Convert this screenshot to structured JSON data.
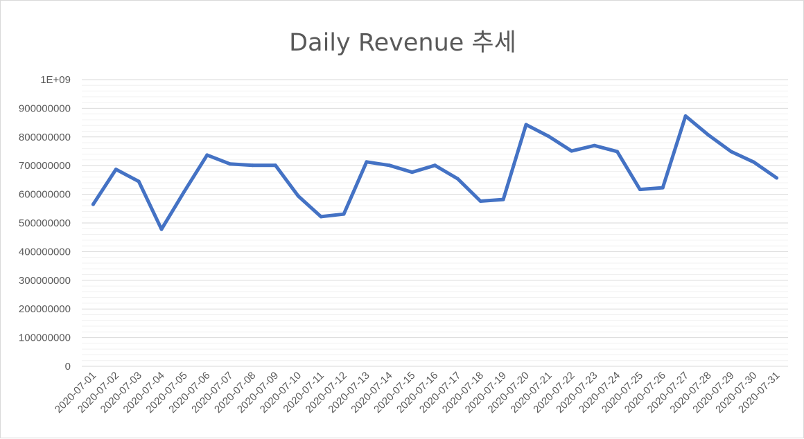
{
  "chart_data": {
    "type": "line",
    "title": "Daily Revenue 추세",
    "xlabel": "",
    "ylabel": "",
    "ylim": [
      0,
      1000000000
    ],
    "y_ticks": [
      0,
      100000000,
      200000000,
      300000000,
      400000000,
      500000000,
      600000000,
      700000000,
      800000000,
      900000000,
      1000000000
    ],
    "y_tick_labels": [
      "0",
      "100000000",
      "200000000",
      "300000000",
      "400000000",
      "500000000",
      "600000000",
      "700000000",
      "800000000",
      "900000000",
      "1E+09"
    ],
    "grid": {
      "major": true,
      "minor": true
    },
    "legend": "none",
    "series_color": "#4472C4",
    "categories": [
      "2020-07-01",
      "2020-07-02",
      "2020-07-03",
      "2020-07-04",
      "2020-07-05",
      "2020-07-06",
      "2020-07-07",
      "2020-07-08",
      "2020-07-09",
      "2020-07-10",
      "2020-07-11",
      "2020-07-12",
      "2020-07-13",
      "2020-07-14",
      "2020-07-15",
      "2020-07-16",
      "2020-07-17",
      "2020-07-18",
      "2020-07-19",
      "2020-07-20",
      "2020-07-21",
      "2020-07-22",
      "2020-07-23",
      "2020-07-24",
      "2020-07-25",
      "2020-07-26",
      "2020-07-27",
      "2020-07-28",
      "2020-07-29",
      "2020-07-30",
      "2020-07-31"
    ],
    "series": [
      {
        "values": [
          565000000,
          687000000,
          645000000,
          478000000,
          610000000,
          737000000,
          706000000,
          701000000,
          701000000,
          594000000,
          522000000,
          531000000,
          713000000,
          701000000,
          677000000,
          701000000,
          654000000,
          576000000,
          582000000,
          843000000,
          802000000,
          751000000,
          770000000,
          749000000,
          617000000,
          623000000,
          873000000,
          807000000,
          749000000,
          712000000,
          657000000
        ]
      }
    ]
  }
}
